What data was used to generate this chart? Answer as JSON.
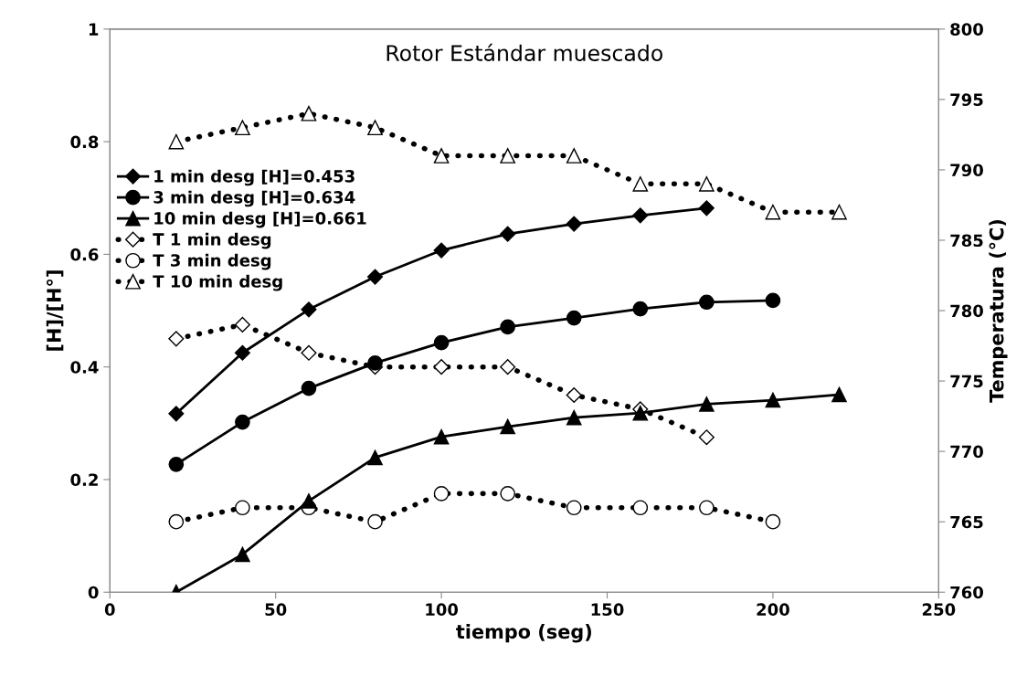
{
  "chart_data": {
    "type": "line",
    "title": "Rotor Estándar muescado",
    "xlabel": "tiempo (seg)",
    "ylabel": "[H]/[H°]",
    "y2label": "Temperatura (°C)",
    "xlim": [
      0,
      250
    ],
    "xticks": [
      0,
      50,
      100,
      150,
      200,
      250
    ],
    "ylim": [
      0,
      1
    ],
    "yticks": [
      0,
      0.2,
      0.4,
      0.6,
      0.8,
      1
    ],
    "y2lim": [
      760,
      800
    ],
    "y2ticks": [
      760,
      765,
      770,
      775,
      780,
      785,
      790,
      795,
      800
    ],
    "grid": false,
    "legend": "top left",
    "series": [
      {
        "name": "1 min desg [H]=0.453",
        "color": "#000000",
        "marker": "diamond",
        "line_style": "solid",
        "x": [
          20,
          40,
          60,
          80,
          100,
          120,
          140,
          160,
          180
        ],
        "values": [
          0.317,
          0.425,
          0.502,
          0.56,
          0.607,
          0.636,
          0.654,
          0.669,
          0.682
        ]
      },
      {
        "name": "3 min desg [H]=0.634",
        "color": "#000000",
        "marker": "circle",
        "line_style": "solid",
        "x": [
          20,
          40,
          60,
          80,
          100,
          120,
          140,
          160,
          180,
          200
        ],
        "values": [
          0.227,
          0.302,
          0.362,
          0.407,
          0.443,
          0.471,
          0.487,
          0.503,
          0.515,
          0.518
        ]
      },
      {
        "name": "10 min desg [H]=0.661",
        "color": "#000000",
        "marker": "triangle",
        "line_style": "solid",
        "x": [
          20,
          40,
          60,
          80,
          100,
          120,
          140,
          160,
          180,
          200,
          220
        ],
        "values": [
          0,
          0.067,
          0.162,
          0.239,
          0.276,
          0.294,
          0.31,
          0.318,
          0.334,
          0.341,
          0.351
        ]
      },
      {
        "name": "T 1 min desg",
        "color": "#000000",
        "marker": "diamond",
        "line_style": "dotted",
        "axis": "y2",
        "x": [
          20,
          40,
          60,
          80,
          100,
          120,
          140,
          160,
          180
        ],
        "values": [
          778,
          779,
          777,
          776,
          776,
          776,
          774,
          773,
          771
        ]
      },
      {
        "name": "T 3 min desg",
        "color": "#000000",
        "marker": "circle",
        "line_style": "dotted",
        "axis": "y2",
        "x": [
          20,
          40,
          60,
          80,
          100,
          120,
          140,
          160,
          180,
          200
        ],
        "values": [
          765,
          766,
          766,
          765,
          767,
          767,
          766,
          766,
          766,
          765
        ]
      },
      {
        "name": "T 10 min desg",
        "color": "#000000",
        "marker": "triangle",
        "line_style": "dotted",
        "axis": "y2",
        "x": [
          20,
          40,
          60,
          80,
          100,
          120,
          140,
          160,
          180,
          200,
          220
        ],
        "values": [
          792,
          793,
          794,
          793,
          791,
          791,
          791,
          789,
          789,
          787,
          787
        ]
      }
    ]
  }
}
